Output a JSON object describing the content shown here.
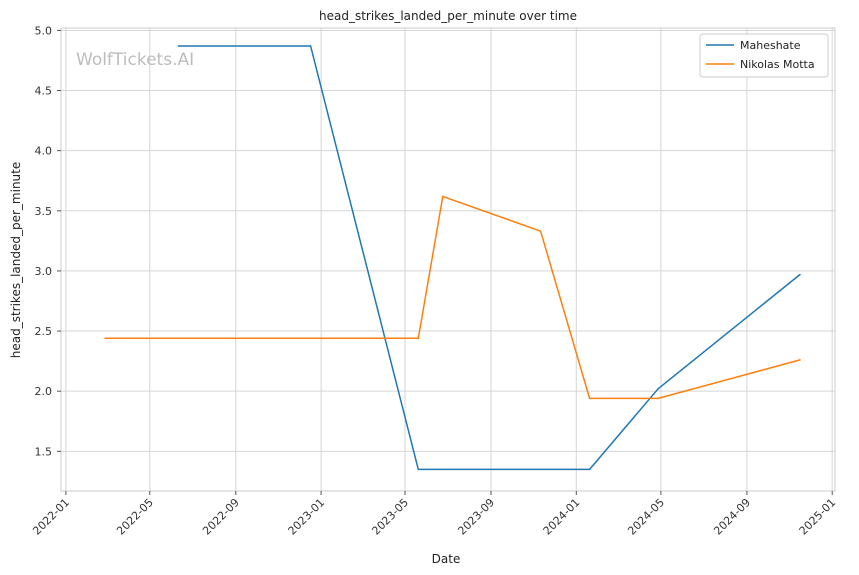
{
  "chart_data": {
    "type": "line",
    "title": "head_strikes_landed_per_minute over time",
    "xlabel": "Date",
    "ylabel": "head_strikes_landed_per_minute",
    "watermark": "WolfTickets.AI",
    "xlim": [
      "2021-12-25",
      "2025-01-05"
    ],
    "ylim": [
      1.17,
      5.02
    ],
    "x_ticks": [
      "2022-01",
      "2022-05",
      "2022-09",
      "2023-01",
      "2023-05",
      "2023-09",
      "2024-01",
      "2024-05",
      "2024-09",
      "2025-01"
    ],
    "y_ticks": [
      "1.5",
      "2.0",
      "2.5",
      "3.0",
      "3.5",
      "4.0",
      "4.5",
      "5.0"
    ],
    "grid": true,
    "legend_position": "top-right",
    "series": [
      {
        "name": "Maheshate",
        "color": "#1f77b4",
        "points": [
          {
            "x": "2022-06-11",
            "y": 4.87
          },
          {
            "x": "2022-12-17",
            "y": 4.87
          },
          {
            "x": "2023-05-20",
            "y": 1.35
          },
          {
            "x": "2024-01-20",
            "y": 1.35
          },
          {
            "x": "2024-04-27",
            "y": 2.02
          },
          {
            "x": "2024-11-16",
            "y": 2.97
          }
        ]
      },
      {
        "name": "Nikolas Motta",
        "color": "#ff7f0e",
        "points": [
          {
            "x": "2022-02-26",
            "y": 2.44
          },
          {
            "x": "2023-05-20",
            "y": 2.44
          },
          {
            "x": "2023-06-24",
            "y": 3.62
          },
          {
            "x": "2023-11-11",
            "y": 3.33
          },
          {
            "x": "2024-01-20",
            "y": 1.94
          },
          {
            "x": "2024-04-27",
            "y": 1.94
          },
          {
            "x": "2024-11-16",
            "y": 2.26
          }
        ]
      }
    ]
  }
}
